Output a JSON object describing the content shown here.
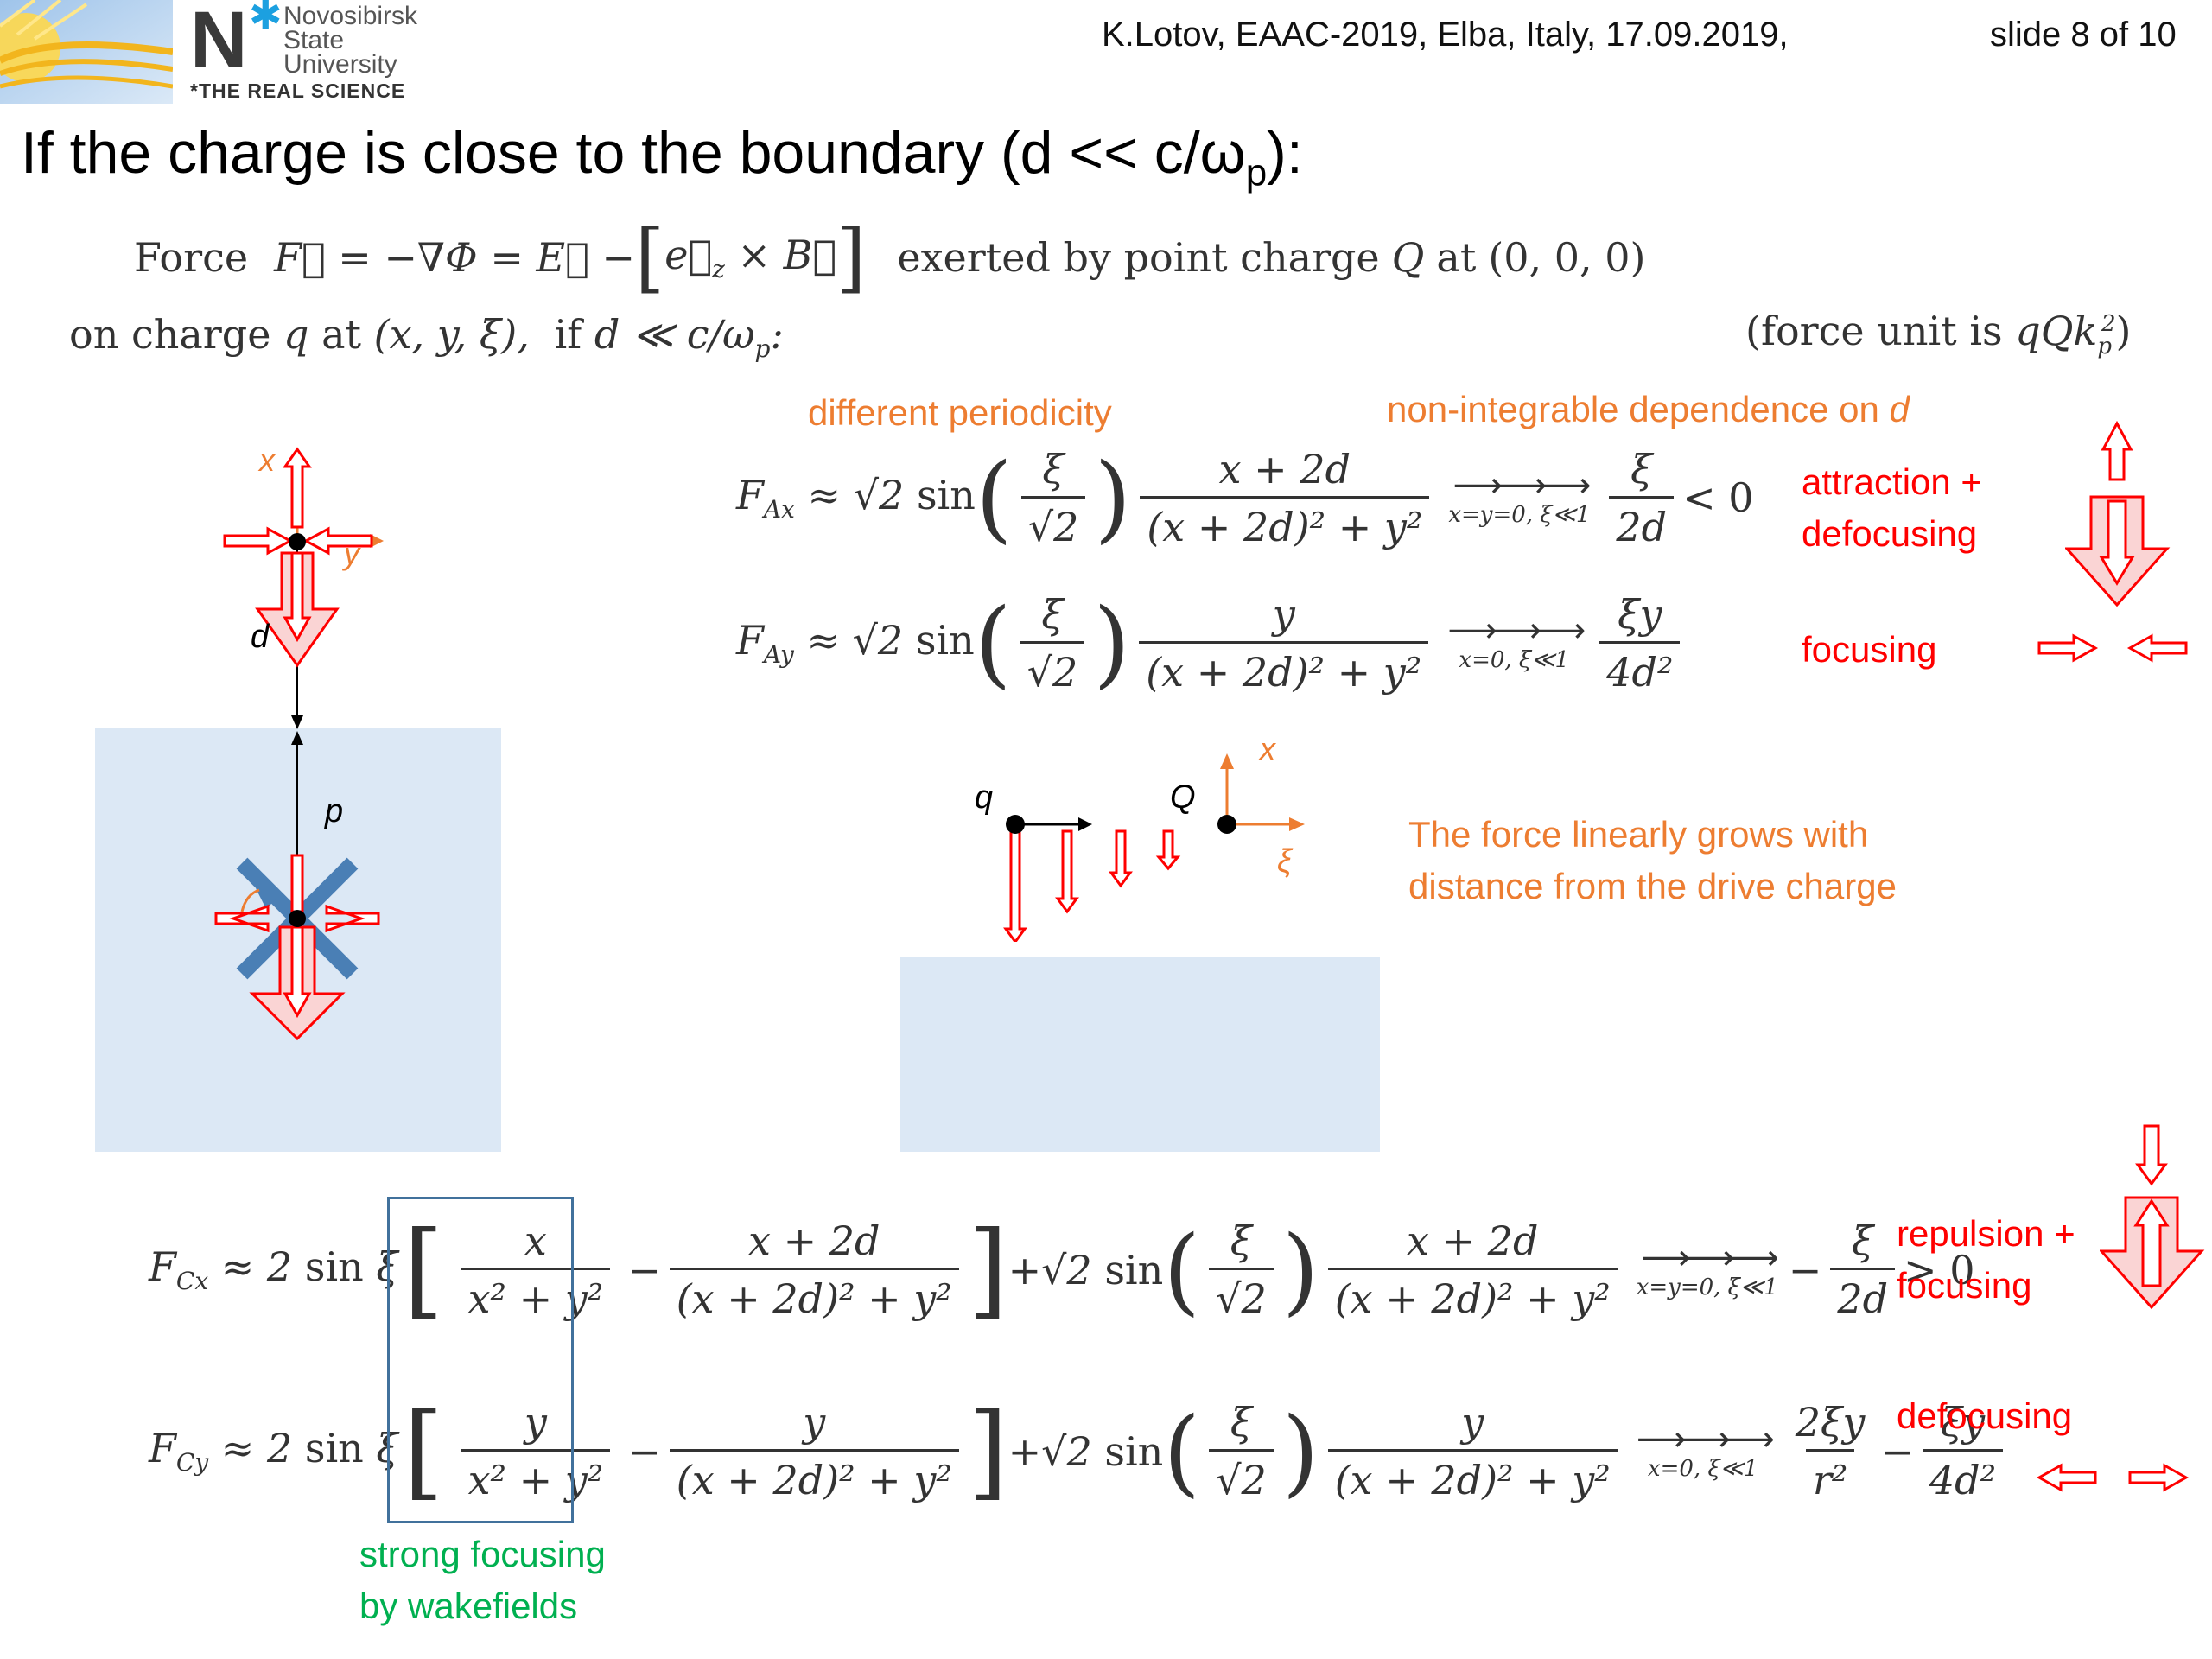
{
  "header": {
    "logo_line1": "Novosibirsk",
    "logo_line2": "State",
    "logo_line3": "University",
    "logo_tagline": "*THE REAL SCIENCE",
    "event": "K.Lotov, EAAC-2019, Elba, Italy, 17.09.2019,",
    "slide": "slide 8 of 10"
  },
  "title": {
    "prefix": "If the charge is close to the boundary (d << c/ω",
    "sub": "p",
    "suffix": "):"
  },
  "intro": {
    "w_force": "Force",
    "w_exerted": "exerted by point charge",
    "w_at": "at",
    "coords": "(0, 0, 0)",
    "w_on": "on charge",
    "w_at2": "at",
    "pos": "(x, y, ξ),",
    "w_if": "if",
    "unit_prefix": "(force unit is",
    "unit_close": ")"
  },
  "annotations": {
    "periodicity": "different periodicity",
    "nonintegrable_prefix": "non-integrable dependence on",
    "nonintegrable_var": "d",
    "attraction_line1": "attraction +",
    "attraction_line2": "defocusing",
    "focusing": "focusing",
    "linear_line1": "The force linearly grows with",
    "linear_line2": "distance from the drive charge",
    "repulsion_line1": "repulsion +",
    "repulsion_line2": "focusing",
    "defocusing": "defocusing",
    "strong_line1": "strong focusing",
    "strong_line2": "by wakefields"
  },
  "diagram_labels": {
    "x": "x",
    "y": "y",
    "d": "d",
    "p": "p",
    "q": "q",
    "Q": "Q",
    "xi": "ξ"
  },
  "limits": {
    "xy0": "x=y=0, ξ≪1",
    "x0": "x=0, ξ≪1"
  },
  "colors": {
    "accent_orange": "#ed7d31",
    "red": "#ff0000",
    "green": "#00b050",
    "plasma_blue": "#dce8f5",
    "focus_arrow_blue": "#4a7fb5",
    "box_blue": "#41719c"
  }
}
